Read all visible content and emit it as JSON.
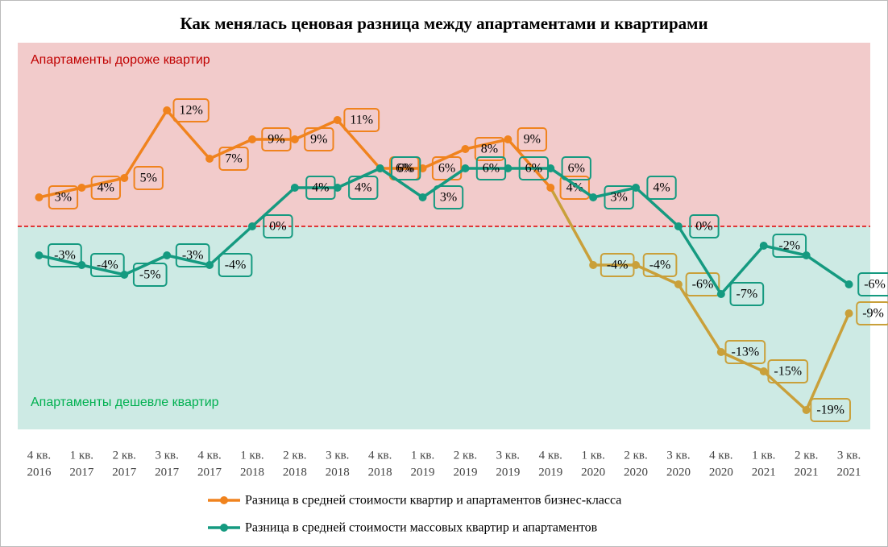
{
  "chart_data": {
    "type": "line",
    "title": "Как менялась ценовая разница между апартаментами  и квартирами",
    "zones": [
      {
        "label": "Апартаменты  дороже квартир",
        "color": "#f2cbcb",
        "label_color": "#c00000"
      },
      {
        "label": "Апартаменты  дешевле квартир",
        "color": "#cdeae4",
        "label_color": "#00b050"
      }
    ],
    "threshold": 0,
    "threshold_color": "#e00000",
    "ylim": [
      -21,
      19
    ],
    "categories": [
      [
        "4 кв.",
        "2016"
      ],
      [
        "1 кв.",
        "2017"
      ],
      [
        "2 кв.",
        "2017"
      ],
      [
        "3 кв.",
        "2017"
      ],
      [
        "4 кв.",
        "2017"
      ],
      [
        "1 кв.",
        "2018"
      ],
      [
        "2 кв.",
        "2018"
      ],
      [
        "3 кв.",
        "2018"
      ],
      [
        "4 кв.",
        "2018"
      ],
      [
        "1 кв.",
        "2019"
      ],
      [
        "2 кв.",
        "2019"
      ],
      [
        "3 кв.",
        "2019"
      ],
      [
        "4 кв.",
        "2019"
      ],
      [
        "1 кв.",
        "2020"
      ],
      [
        "2 кв.",
        "2020"
      ],
      [
        "3 кв.",
        "2020"
      ],
      [
        "4 кв.",
        "2020"
      ],
      [
        "1 кв.",
        "2021"
      ],
      [
        "2 кв.",
        "2021"
      ],
      [
        "3 кв.",
        "2021"
      ]
    ],
    "series": [
      {
        "name": "Разница в средней стоимости квартир и апартаментов бизнес-класса",
        "color": "#f0831e",
        "point_colors": [
          "#f0831e",
          "#f0831e",
          "#f0831e",
          "#f0831e",
          "#f0831e",
          "#f0831e",
          "#f0831e",
          "#f0831e",
          "#f0831e",
          "#f0831e",
          "#f0831e",
          "#f0831e",
          "#f0831e",
          "#c9a03a",
          "#c9a03a",
          "#c9a03a",
          "#c9a03a",
          "#c9a03a",
          "#c9a03a",
          "#c9a03a"
        ],
        "values": [
          3,
          4,
          5,
          12,
          7,
          9,
          9,
          11,
          6,
          6,
          8,
          9,
          4,
          -4,
          -4,
          -6,
          -13,
          -15,
          -19,
          -9
        ],
        "value_labels": [
          "3%",
          "4%",
          "5%",
          "12%",
          "7%",
          "9%",
          "9%",
          "11%",
          "6%",
          "6%",
          "8%",
          "9%",
          "4%",
          "-4%",
          "-4%",
          "-6%",
          "-13%",
          "-15%",
          "-19%",
          "-9%"
        ]
      },
      {
        "name": "Разница в средней стоимости массовых квартир и апартаментов",
        "color": "#159a80",
        "values": [
          -3,
          -4,
          -5,
          -3,
          -4,
          0,
          4,
          4,
          6,
          3,
          6,
          6,
          6,
          3,
          4,
          0,
          -7,
          -2,
          -3,
          -6
        ],
        "value_labels": [
          "-3%",
          "-4%",
          "-5%",
          "-3%",
          "-4%",
          "0%",
          "4%",
          "4%",
          "6%",
          "3%",
          "6%",
          "6%",
          "6%",
          "3%",
          "4%",
          "0%",
          "-7%",
          "-2%",
          null,
          "-6%"
        ]
      }
    ]
  }
}
